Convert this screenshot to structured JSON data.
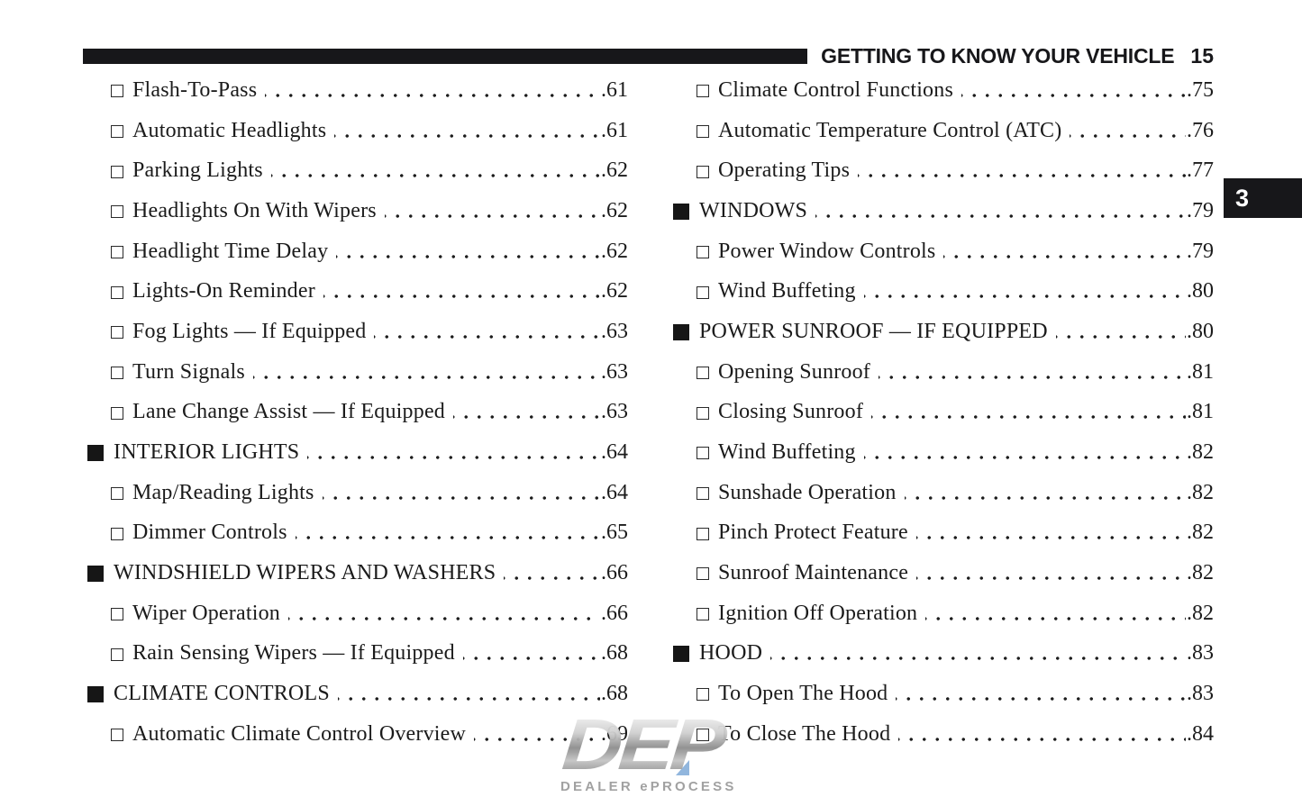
{
  "header": {
    "title": "GETTING TO KNOW YOUR VEHICLE",
    "page_number": "15"
  },
  "side_tab": {
    "label": "3"
  },
  "toc": {
    "left_column": [
      {
        "level": "sub",
        "label": "Flash-To-Pass",
        "page": ".61"
      },
      {
        "level": "sub",
        "label": "Automatic Headlights",
        "page": ".61"
      },
      {
        "level": "sub",
        "label": "Parking Lights",
        "page": ".62"
      },
      {
        "level": "sub",
        "label": "Headlights On With Wipers",
        "page": ".62"
      },
      {
        "level": "sub",
        "label": "Headlight Time Delay",
        "page": ".62"
      },
      {
        "level": "sub",
        "label": "Lights-On Reminder",
        "page": ".62"
      },
      {
        "level": "sub",
        "label": "Fog Lights — If Equipped",
        "page": ".63"
      },
      {
        "level": "sub",
        "label": "Turn Signals",
        "page": ".63"
      },
      {
        "level": "sub",
        "label": "Lane Change Assist — If Equipped",
        "page": ".63"
      },
      {
        "level": "section",
        "label": "INTERIOR LIGHTS",
        "page": ".64"
      },
      {
        "level": "sub",
        "label": "Map/Reading Lights",
        "page": ".64"
      },
      {
        "level": "sub",
        "label": "Dimmer Controls",
        "page": ".65"
      },
      {
        "level": "section",
        "label": "WINDSHIELD WIPERS AND WASHERS",
        "page": ".66"
      },
      {
        "level": "sub",
        "label": "Wiper Operation",
        "page": ".66"
      },
      {
        "level": "sub",
        "label": "Rain Sensing Wipers — If Equipped",
        "page": ".68"
      },
      {
        "level": "section",
        "label": "CLIMATE CONTROLS",
        "page": ".68"
      },
      {
        "level": "sub",
        "label": "Automatic Climate Control Overview",
        "page": ".69"
      }
    ],
    "right_column": [
      {
        "level": "sub",
        "label": "Climate Control Functions",
        "page": ".75"
      },
      {
        "level": "sub",
        "label": "Automatic Temperature Control (ATC)",
        "page": ".76"
      },
      {
        "level": "sub",
        "label": "Operating Tips",
        "page": ".77"
      },
      {
        "level": "section",
        "label": "WINDOWS",
        "page": ".79"
      },
      {
        "level": "sub",
        "label": "Power Window Controls",
        "page": ".79"
      },
      {
        "level": "sub",
        "label": "Wind Buffeting",
        "page": ".80"
      },
      {
        "level": "section",
        "label": "POWER SUNROOF — IF EQUIPPED",
        "page": ".80"
      },
      {
        "level": "sub",
        "label": "Opening Sunroof",
        "page": ".81"
      },
      {
        "level": "sub",
        "label": "Closing Sunroof",
        "page": ".81"
      },
      {
        "level": "sub",
        "label": "Wind Buffeting",
        "page": ".82"
      },
      {
        "level": "sub",
        "label": "Sunshade Operation",
        "page": ".82"
      },
      {
        "level": "sub",
        "label": "Pinch Protect Feature",
        "page": ".82"
      },
      {
        "level": "sub",
        "label": "Sunroof Maintenance",
        "page": ".82"
      },
      {
        "level": "sub",
        "label": "Ignition Off Operation",
        "page": ".82"
      },
      {
        "level": "section",
        "label": "HOOD",
        "page": ".83"
      },
      {
        "level": "sub",
        "label": "To Open The Hood",
        "page": ".83"
      },
      {
        "level": "sub",
        "label": "To Close The Hood",
        "page": ".84"
      }
    ]
  },
  "watermark": {
    "logo_text": "DEP",
    "tagline": "DEALER ePROCESS"
  },
  "colors": {
    "ink": "#1b1b1b",
    "header_bar": "#17171a",
    "tab_bg": "#17171a",
    "tab_text": "#ffffff",
    "logo_silver": "#b9b9b9",
    "logo_accent_blue": "#8cb3dc",
    "tagline_gray": "#9c9c9c"
  }
}
